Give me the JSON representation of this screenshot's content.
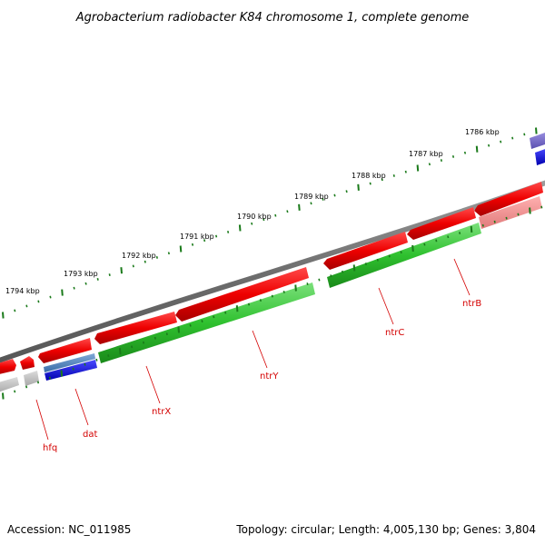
{
  "title": "Agrobacterium radiobacter K84 chromosome 1, complete genome",
  "footer": {
    "accession": "Accession: NC_011985",
    "topology": "Topology: circular; Length: 4,005,130 bp; Genes: 3,804"
  },
  "scale_labels": [
    "1794 kbp",
    "1793 kbp",
    "1792 kbp",
    "1791 kbp",
    "1790 kbp",
    "1789 kbp",
    "1788 kbp",
    "1787 kbp",
    "1786 kbp"
  ],
  "gene_labels": [
    "hfq",
    "dat",
    "ntrX",
    "ntrY",
    "ntrC",
    "ntrB"
  ],
  "colors": {
    "forward_strand": "#ff0000",
    "reverse_strand": "#22bb22",
    "backbone": "#777777",
    "ticks": "#1a7a1a",
    "label": "#d40000"
  }
}
